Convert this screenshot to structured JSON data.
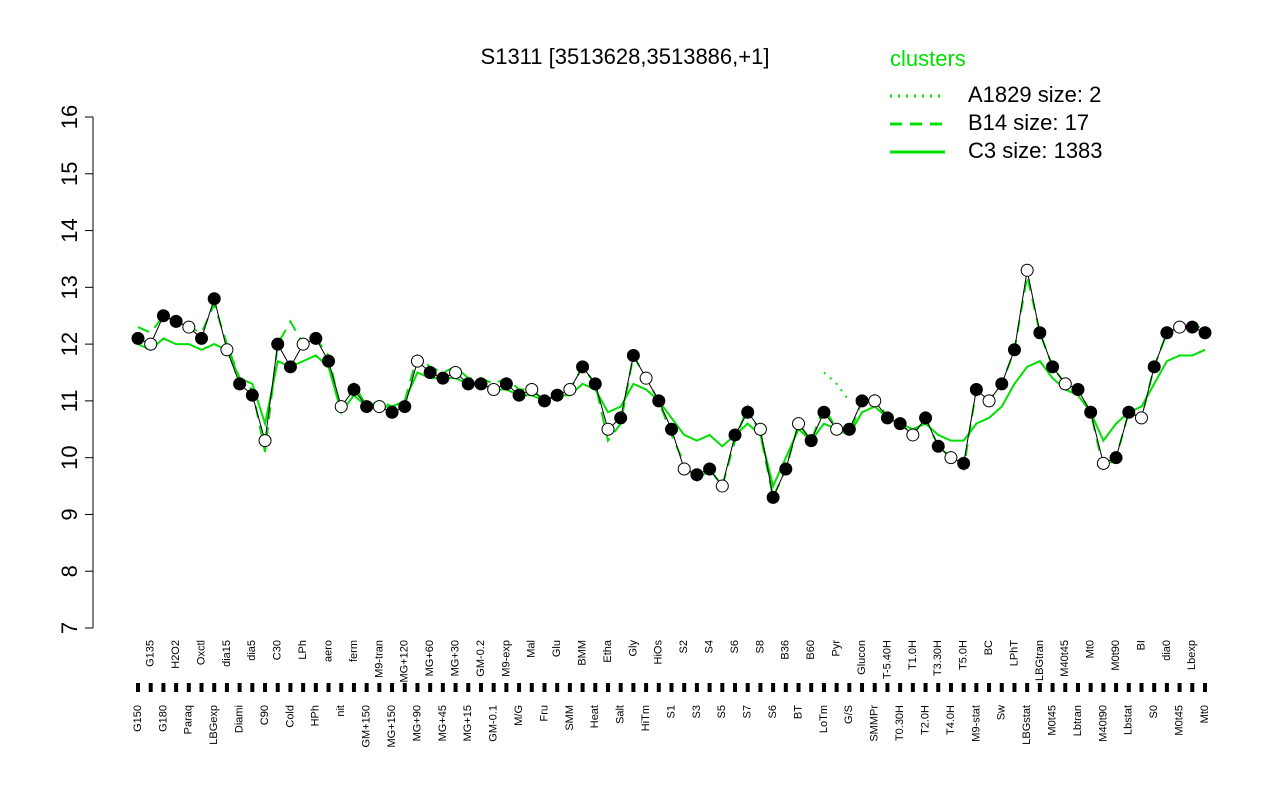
{
  "chart_data": {
    "type": "line",
    "title": "S1311 [3513628,3513886,+1]",
    "legend_title": "clusters",
    "categories": [
      "G150",
      "G135",
      "G180",
      "H2O2",
      "Paraq",
      "Oxctl",
      "LBGexp",
      "dia15",
      "Diami",
      "dia5",
      "C90",
      "C30",
      "Cold",
      "LPh",
      "HPh",
      "aero",
      "nit",
      "ferm",
      "GM+150",
      "M9-tran",
      "MG+150",
      "MG+120",
      "MG+90",
      "MG+60",
      "MG+45",
      "MG+30",
      "MG+15",
      "GM-0.2",
      "GM-0.1",
      "M9-exp",
      "M/G",
      "Mal",
      "Fru",
      "Glu",
      "SMM",
      "BMM",
      "Heat",
      "Etha",
      "Salt",
      "Gly",
      "HiTm",
      "HiOs",
      "S1",
      "S2",
      "S3",
      "S4",
      "S5",
      "S6",
      "S7",
      "S8",
      "S6",
      "B36",
      "BT",
      "B60",
      "LoTm",
      "Pyr",
      "G/S",
      "Glucon",
      "SMMPr",
      "T-5.40H",
      "T0.30H",
      "T1.0H",
      "T2.0H",
      "T3.30H",
      "T4.0H",
      "T5.0H",
      "M9-stat",
      "BC",
      "Sw",
      "LPhT",
      "LBGstat",
      "LBGtran",
      "M0t45",
      "M40t45",
      "Lbtran",
      "Mt0",
      "M40t90",
      "M0t90",
      "Lbstat",
      "BI",
      "S0",
      "dia0",
      "M0t45",
      "Lbexp",
      "Mt0"
    ],
    "values": [
      12.1,
      12.0,
      12.5,
      12.4,
      12.3,
      12.1,
      12.8,
      11.9,
      11.3,
      11.1,
      10.3,
      12.0,
      11.6,
      12.0,
      12.1,
      11.7,
      10.9,
      11.2,
      10.9,
      10.9,
      10.8,
      10.9,
      11.7,
      11.5,
      11.4,
      11.5,
      11.3,
      11.3,
      11.2,
      11.3,
      11.1,
      11.2,
      11.0,
      11.1,
      11.2,
      11.6,
      11.3,
      10.5,
      10.7,
      11.8,
      11.4,
      11.0,
      10.5,
      9.8,
      9.7,
      9.8,
      9.5,
      10.4,
      10.8,
      10.5,
      9.3,
      9.8,
      10.6,
      10.3,
      10.8,
      10.5,
      10.5,
      11.0,
      11.0,
      10.7,
      10.6,
      10.4,
      10.7,
      10.2,
      10.0,
      9.9,
      11.2,
      11.0,
      11.3,
      11.9,
      13.3,
      12.2,
      11.6,
      11.3,
      11.2,
      10.8,
      9.9,
      10.0,
      10.8,
      10.7,
      11.6,
      12.2,
      12.3,
      12.3,
      12.2
    ],
    "series": [
      {
        "name": "A1829 size: 2",
        "color": "#00e000",
        "dash": "2,6",
        "values": [
          null,
          null,
          null,
          null,
          null,
          null,
          null,
          null,
          null,
          null,
          null,
          null,
          null,
          null,
          null,
          null,
          null,
          null,
          null,
          null,
          null,
          null,
          null,
          null,
          null,
          null,
          null,
          null,
          null,
          null,
          null,
          null,
          null,
          null,
          null,
          null,
          null,
          null,
          null,
          null,
          null,
          null,
          null,
          null,
          null,
          null,
          null,
          null,
          null,
          null,
          null,
          null,
          null,
          null,
          11.5,
          11.3,
          11.0,
          null,
          null,
          null,
          null,
          null,
          null,
          null,
          null,
          null,
          null,
          null,
          null,
          null,
          null,
          null,
          null,
          null,
          null,
          null,
          null,
          null,
          null,
          null,
          null,
          null,
          null,
          null,
          null
        ]
      },
      {
        "name": "B14 size: 17",
        "color": "#00e000",
        "dash": "12,8",
        "values": [
          12.3,
          12.2,
          12.5,
          12.4,
          12.3,
          12.2,
          12.7,
          12.0,
          11.4,
          11.2,
          10.1,
          12.0,
          12.4,
          12.0,
          12.1,
          11.8,
          10.8,
          11.3,
          10.9,
          11.0,
          10.9,
          11.0,
          11.8,
          11.6,
          11.5,
          11.6,
          11.4,
          11.4,
          11.3,
          11.4,
          11.2,
          11.2,
          11.0,
          11.1,
          11.2,
          11.6,
          11.3,
          10.3,
          10.6,
          11.8,
          11.4,
          11.0,
          10.4,
          9.9,
          9.6,
          9.8,
          9.5,
          10.3,
          10.9,
          10.4,
          9.3,
          9.8,
          10.6,
          10.3,
          10.9,
          10.5,
          10.4,
          11.0,
          11.1,
          10.7,
          10.6,
          10.4,
          10.7,
          10.2,
          10.0,
          9.8,
          11.2,
          11.0,
          11.3,
          11.9,
          13.2,
          12.2,
          11.6,
          11.3,
          11.2,
          10.8,
          9.8,
          10.0,
          10.8,
          10.7,
          11.6,
          12.2,
          12.3,
          12.3,
          12.3
        ]
      },
      {
        "name": "C3 size: 1383",
        "color": "#00e000",
        "dash": "",
        "values": [
          12.0,
          11.9,
          12.1,
          12.0,
          12.0,
          11.9,
          12.0,
          11.9,
          11.4,
          11.3,
          10.6,
          11.7,
          11.6,
          11.7,
          11.8,
          11.6,
          10.8,
          11.1,
          10.9,
          10.9,
          10.9,
          11.0,
          11.5,
          11.4,
          11.4,
          11.4,
          11.3,
          11.3,
          11.2,
          11.2,
          11.1,
          11.1,
          11.0,
          11.1,
          11.1,
          11.3,
          11.2,
          10.8,
          10.9,
          11.3,
          11.2,
          11.0,
          10.7,
          10.4,
          10.3,
          10.4,
          10.2,
          10.4,
          10.6,
          10.4,
          9.5,
          10.0,
          10.5,
          10.3,
          10.6,
          10.5,
          10.4,
          10.8,
          10.9,
          10.7,
          10.6,
          10.5,
          10.6,
          10.4,
          10.3,
          10.3,
          10.6,
          10.7,
          10.9,
          11.3,
          11.6,
          11.7,
          11.4,
          11.2,
          11.1,
          10.8,
          10.3,
          10.6,
          10.8,
          10.9,
          11.3,
          11.7,
          11.8,
          11.8,
          11.9
        ]
      }
    ],
    "ylim": [
      7,
      16
    ],
    "yticks": [
      7,
      8,
      9,
      10,
      11,
      12,
      13,
      14,
      15,
      16
    ]
  }
}
